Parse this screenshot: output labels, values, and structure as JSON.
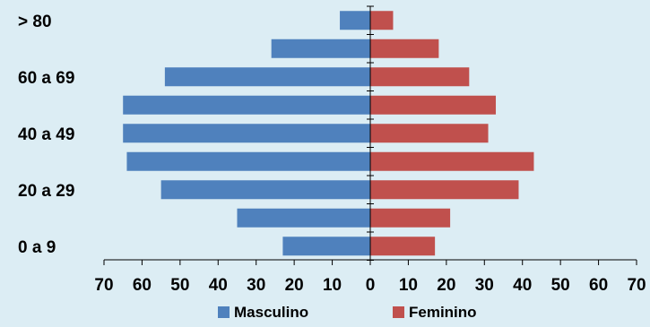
{
  "chart_data": {
    "type": "bar",
    "orientation": "horizontal",
    "layout": "population-pyramid",
    "categories": [
      "0 a 9",
      "10 a 19",
      "20 a 29",
      "30 a 39",
      "40 a 49",
      "50 a 59",
      "60 a 69",
      "70 a 79",
      "> 80"
    ],
    "category_labels_shown": [
      "0 a 9",
      "20 a 29",
      "40 a 49",
      "60 a 69",
      "> 80"
    ],
    "series": [
      {
        "name": "Masculino",
        "color": "#4f81bd",
        "side": "left",
        "values": [
          23,
          35,
          55,
          64,
          65,
          65,
          54,
          26,
          8
        ]
      },
      {
        "name": "Feminino",
        "color": "#c0504d",
        "side": "right",
        "values": [
          17,
          21,
          39,
          43,
          31,
          33,
          26,
          18,
          6
        ]
      }
    ],
    "x_ticks": [
      "70",
      "60",
      "50",
      "40",
      "30",
      "20",
      "10",
      "0",
      "10",
      "20",
      "30",
      "40",
      "50",
      "60",
      "70"
    ],
    "xlim": [
      -70,
      70
    ],
    "legend_position": "bottom",
    "grid": false
  }
}
